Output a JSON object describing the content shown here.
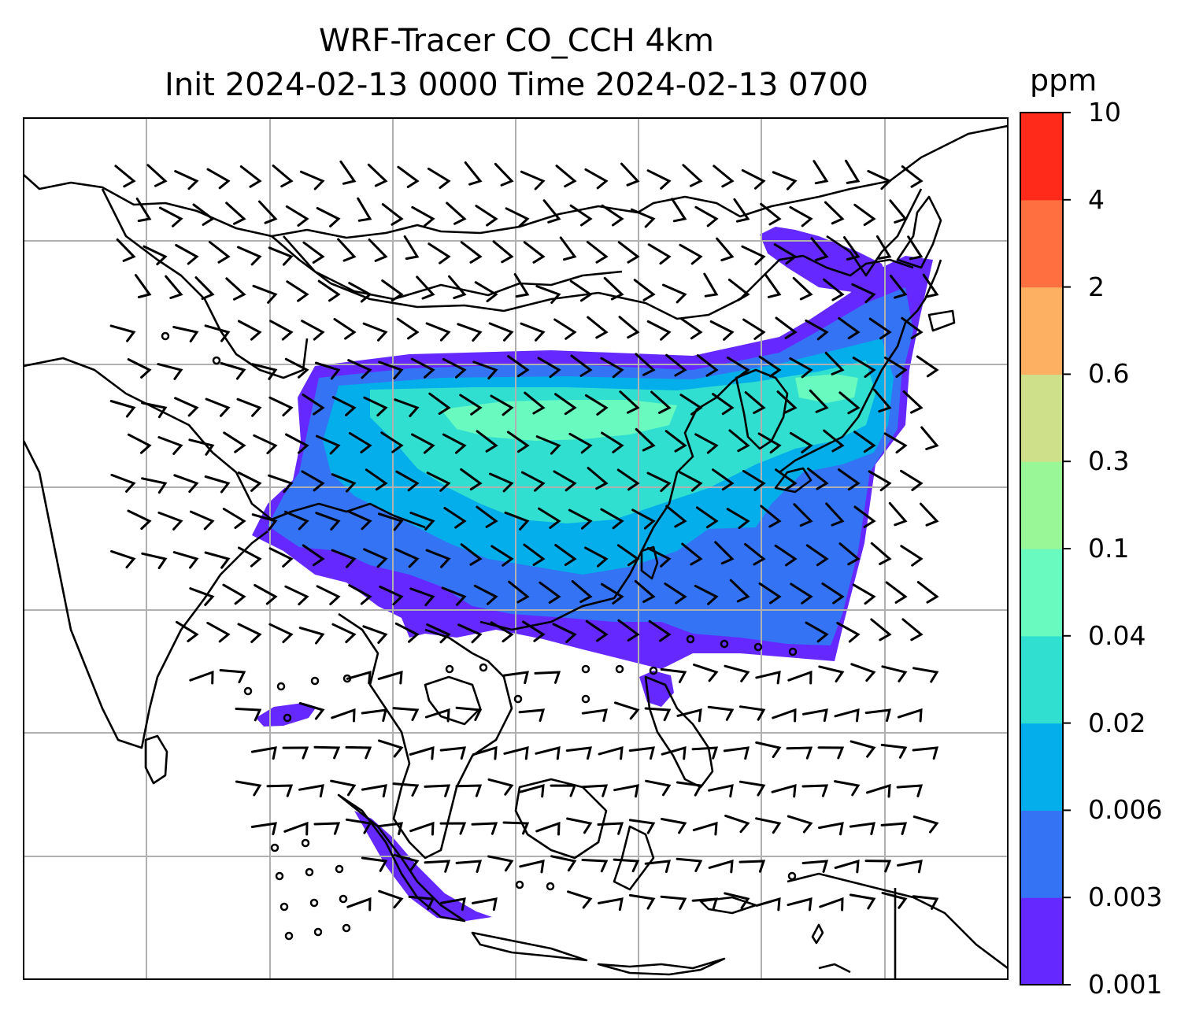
{
  "title": {
    "line1": "WRF-Tracer CO_CCH 4km",
    "line2": "Init 2024-02-13 0000 Time 2024-02-13 0700"
  },
  "colorbar": {
    "unit": "ppm",
    "levels": [
      "0.001",
      "0.003",
      "0.006",
      "0.02",
      "0.04",
      "0.1",
      "0.3",
      "0.6",
      "2",
      "4",
      "10"
    ],
    "colors": [
      "#6529ff",
      "#3473f3",
      "#04aeea",
      "#31dfd1",
      "#68fabe",
      "#9af798",
      "#cfe08a",
      "#fdaf62",
      "#ff6f40",
      "#ff2a19"
    ]
  },
  "map": {
    "gridlines": true,
    "overlay": "wind barbs"
  },
  "colors": {
    "gridline": "#b0b0b0",
    "coastline": "#000000"
  }
}
